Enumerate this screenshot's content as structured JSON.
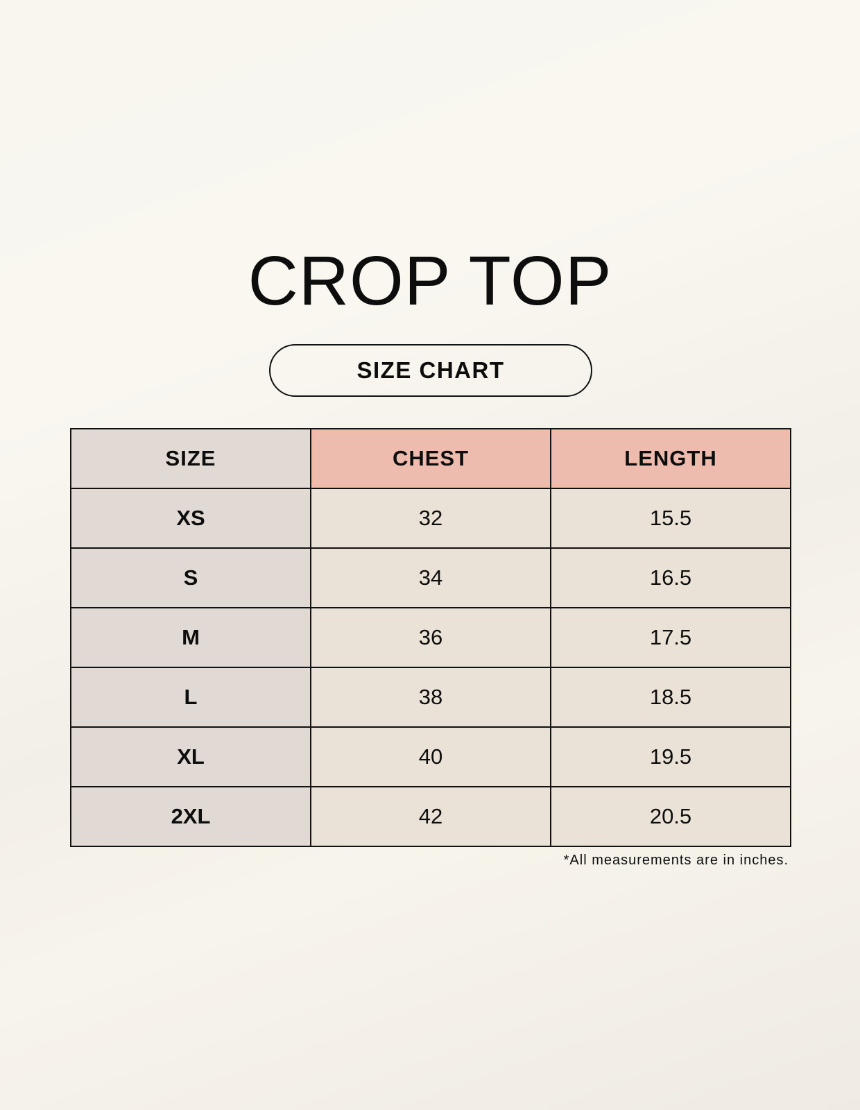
{
  "title": "CROP TOP",
  "subtitle": "SIZE CHART",
  "table": {
    "headers": [
      "SIZE",
      "CHEST",
      "LENGTH"
    ],
    "rows": [
      [
        "XS",
        "32",
        "15.5"
      ],
      [
        "S",
        "34",
        "16.5"
      ],
      [
        "M",
        "36",
        "17.5"
      ],
      [
        "L",
        "38",
        "18.5"
      ],
      [
        "XL",
        "40",
        "19.5"
      ],
      [
        "2XL",
        "42",
        "20.5"
      ]
    ]
  },
  "footnote": "*All measurements are in inches.",
  "colors": {
    "size_column": "#e1d9d3",
    "header_accent": "#edbcae",
    "value_cells": "#ebe2d7"
  }
}
